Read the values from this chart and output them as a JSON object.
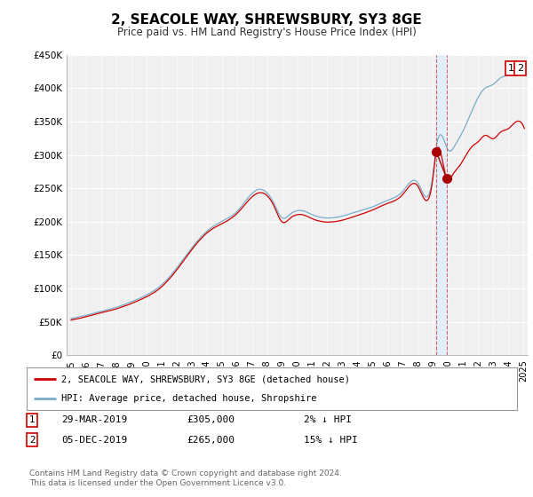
{
  "title": "2, SEACOLE WAY, SHREWSBURY, SY3 8GE",
  "subtitle": "Price paid vs. HM Land Registry's House Price Index (HPI)",
  "ylim": [
    0,
    450000
  ],
  "yticks": [
    0,
    50000,
    100000,
    150000,
    200000,
    250000,
    300000,
    350000,
    400000,
    450000
  ],
  "ytick_labels": [
    "£0",
    "£50K",
    "£100K",
    "£150K",
    "£200K",
    "£250K",
    "£300K",
    "£350K",
    "£400K",
    "£450K"
  ],
  "bg_color": "#f0f0f0",
  "grid_color": "#ffffff",
  "line1_color": "#cc0000",
  "line2_color": "#7aadcc",
  "marker_color": "#aa0000",
  "sale1_date": "29-MAR-2019",
  "sale1_price": 305000,
  "sale1_pct": "2% ↓ HPI",
  "sale1_year": 2019.23,
  "sale2_date": "05-DEC-2019",
  "sale2_price": 265000,
  "sale2_pct": "15% ↓ HPI",
  "sale2_year": 2019.92,
  "legend1_label": "2, SEACOLE WAY, SHREWSBURY, SY3 8GE (detached house)",
  "legend2_label": "HPI: Average price, detached house, Shropshire",
  "footer": "Contains HM Land Registry data © Crown copyright and database right 2024.\nThis data is licensed under the Open Government Licence v3.0.",
  "shade_color": "#ddeeff",
  "xstart": 1995,
  "xend": 2025
}
